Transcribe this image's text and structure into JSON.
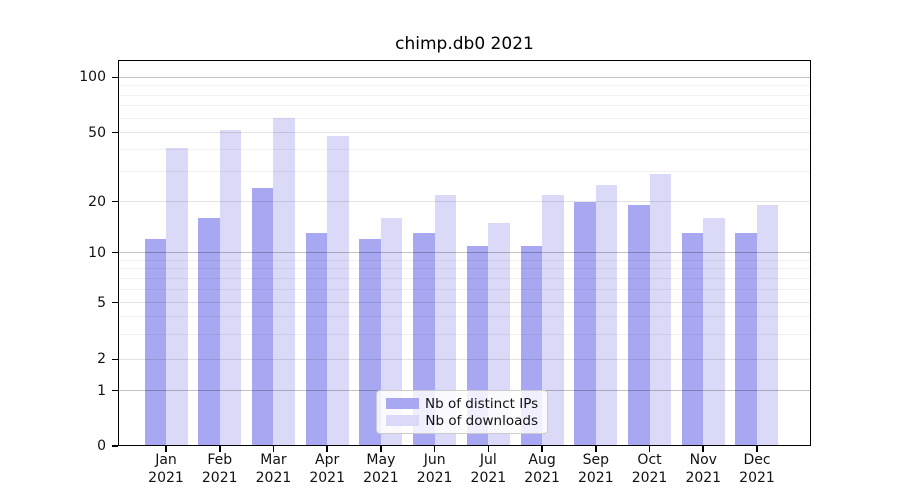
{
  "title": "chimp.db0 2021",
  "chart_data": {
    "type": "bar",
    "title": "chimp.db0 2021",
    "categories": [
      "Jan 2021",
      "Feb 2021",
      "Mar 2021",
      "Apr 2021",
      "May 2021",
      "Jun 2021",
      "Jul 2021",
      "Aug 2021",
      "Sep 2021",
      "Oct 2021",
      "Nov 2021",
      "Dec 2021"
    ],
    "series": [
      {
        "name": "Nb of distinct IPs",
        "color": "#a8a8f2",
        "values": [
          12,
          16,
          24,
          13,
          12,
          13,
          11,
          11,
          20,
          19,
          13,
          13
        ]
      },
      {
        "name": "Nb of downloads",
        "color": "#dadaf8",
        "values": [
          41,
          52,
          60,
          48,
          16,
          22,
          15,
          22,
          25,
          29,
          16,
          19
        ]
      }
    ],
    "xlabel": "",
    "ylabel": "",
    "yscale": "symlog",
    "yticks": [
      0,
      1,
      2,
      5,
      10,
      20,
      50,
      100
    ],
    "yticks_minor": [
      3,
      4,
      6,
      7,
      8,
      9,
      30,
      40,
      60,
      70,
      80,
      90
    ],
    "ylim": [
      0,
      112
    ],
    "grid": "horizontal, major and minor",
    "legend_position": "lower center inside plot"
  }
}
